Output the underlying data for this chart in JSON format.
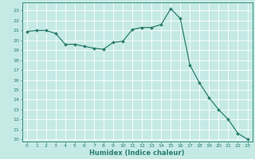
{
  "x": [
    0,
    1,
    2,
    3,
    4,
    5,
    6,
    7,
    8,
    9,
    10,
    11,
    12,
    13,
    14,
    15,
    16,
    17,
    18,
    19,
    20,
    21,
    22,
    23
  ],
  "y": [
    20.9,
    21.0,
    21.0,
    20.7,
    19.6,
    19.6,
    19.4,
    19.2,
    19.1,
    19.8,
    19.9,
    21.1,
    21.3,
    21.3,
    21.6,
    23.2,
    22.2,
    17.5,
    15.7,
    14.2,
    13.0,
    12.0,
    10.6,
    10.0
  ],
  "line_color": "#2a7d6c",
  "marker": "D",
  "marker_size": 2.0,
  "bg_color": "#c5eae6",
  "grid_color": "#ffffff",
  "xlabel": "Humidex (Indice chaleur)",
  "ylim": [
    9.8,
    23.8
  ],
  "xlim": [
    -0.5,
    23.5
  ],
  "yticks": [
    10,
    11,
    12,
    13,
    14,
    15,
    16,
    17,
    18,
    19,
    20,
    21,
    22,
    23
  ],
  "xticks": [
    0,
    1,
    2,
    3,
    4,
    5,
    6,
    7,
    8,
    9,
    10,
    11,
    12,
    13,
    14,
    15,
    16,
    17,
    18,
    19,
    20,
    21,
    22,
    23
  ],
  "tick_color": "#2a7d6c",
  "label_color": "#2a7d6c",
  "spine_color": "#2a7d6c",
  "tick_fontsize": 4.5,
  "xlabel_fontsize": 6.0,
  "linewidth": 0.9
}
